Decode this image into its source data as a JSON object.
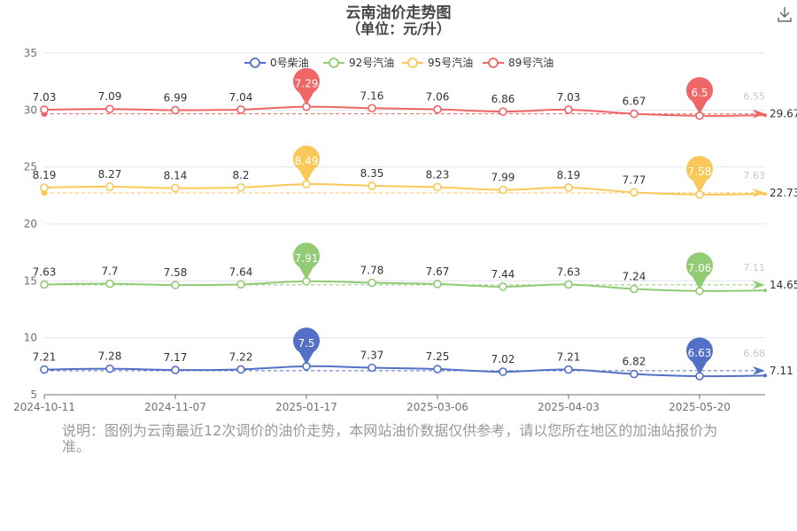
{
  "page": {
    "note": "说明：图例为云南最近12次调价的油价走势，本网站油价数据仅供参考，请以您所在地区的加油站报价为准。",
    "download_icon": "download-icon"
  },
  "chart_data": {
    "type": "line",
    "title": "云南油价走势图",
    "subtitle": "（单位：元/升）",
    "ylim": [
      5,
      35
    ],
    "yticks": [
      5,
      10,
      15,
      20,
      25,
      30,
      35
    ],
    "xtick_labels": [
      "2024-10-11",
      "2024-11-07",
      "2025-01-17",
      "2025-03-06",
      "2025-04-03",
      "2025-05-20"
    ],
    "xtick_index": [
      0,
      2,
      4,
      6,
      8,
      10
    ],
    "grid": true,
    "legend_position": "top",
    "series": [
      {
        "name": "0号柴油",
        "color": "#5470c6",
        "values": [
          7.21,
          7.28,
          7.17,
          7.22,
          7.5,
          7.37,
          7.25,
          7.02,
          7.21,
          6.82,
          6.63,
          6.68
        ],
        "max_pin": "7.5",
        "min_pin": "6.63",
        "average": 7.11,
        "average_label": "7.11",
        "ghost_label": "6.68"
      },
      {
        "name": "92号汽油",
        "color": "#91cc75",
        "values": [
          7.63,
          7.7,
          7.58,
          7.64,
          7.91,
          7.78,
          7.67,
          7.44,
          7.63,
          7.24,
          7.06,
          7.11
        ],
        "max_pin": "7.91",
        "min_pin": "7.06",
        "average": 14.65,
        "average_label": "14.65",
        "ghost_label": "7.11"
      },
      {
        "name": "95号汽油",
        "color": "#fac858",
        "values": [
          8.19,
          8.27,
          8.14,
          8.2,
          8.49,
          8.35,
          8.23,
          7.99,
          8.19,
          7.77,
          7.58,
          7.63
        ],
        "max_pin": "8.49",
        "min_pin": "7.58",
        "average": 22.73,
        "average_label": "22.73",
        "ghost_label": "7.63"
      },
      {
        "name": "89号汽油",
        "color": "#ee6666",
        "values": [
          7.03,
          7.09,
          6.99,
          7.04,
          7.29,
          7.16,
          7.06,
          6.86,
          7.03,
          6.67,
          6.5,
          6.55
        ],
        "max_pin": "7.29",
        "min_pin": "6.5",
        "average": 29.67,
        "average_label": "29.67",
        "ghost_label": "6.55"
      }
    ]
  }
}
